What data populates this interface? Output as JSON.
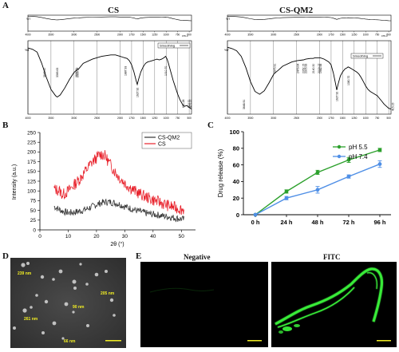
{
  "panels": {
    "A": {
      "letter": "A"
    },
    "B": {
      "letter": "B"
    },
    "C": {
      "letter": "C"
    },
    "D": {
      "letter": "D"
    },
    "E": {
      "letter": "E"
    }
  },
  "colors": {
    "ph55": "#2ca02c",
    "ph74": "#4f8fe6",
    "cs_qm2_xrd": "#333333",
    "cs_xrd": "#e8202a",
    "fitc_green": "#3dff3d",
    "scale_bar": "#f2ee24"
  },
  "chart_data": [
    {
      "id": "ftir_cs",
      "type": "line",
      "title": "CS",
      "xunit": "cm-1",
      "xlim": [
        4000,
        450
      ],
      "xticks": [
        "4000",
        "3500",
        "3000",
        "2500",
        "2000",
        "1750",
        "1500",
        "1250",
        "1000",
        "750",
        "500"
      ],
      "ylabel": "%T",
      "legend": "Smoothing",
      "peak_labels": [
        "3648.20",
        "3365.63",
        "2955.41",
        "2929.97",
        "1887.93",
        "1627.92",
        "1010.70",
        "631.28",
        "513.71",
        "473.22"
      ],
      "series": [
        {
          "x": [
            4000,
            3900,
            3800,
            3700,
            3600,
            3500,
            3400,
            3365,
            3300,
            3200,
            3100,
            3000,
            2950,
            2900,
            2800,
            2600,
            2400,
            2200,
            2100,
            2000,
            1950,
            1900,
            1850,
            1800,
            1750,
            1700,
            1650,
            1628,
            1600,
            1550,
            1500,
            1450,
            1400,
            1350,
            1300,
            1250,
            1200,
            1150,
            1100,
            1050,
            1011,
            980,
            950,
            900,
            850,
            800,
            750,
            700,
            650,
            631,
            600,
            550,
            514,
            473,
            450
          ],
          "y": [
            92,
            90,
            86,
            70,
            50,
            33,
            24,
            22,
            25,
            35,
            47,
            57,
            60,
            62,
            70,
            76,
            80,
            82,
            82,
            80,
            79,
            78,
            77,
            74,
            68,
            58,
            45,
            40,
            47,
            58,
            65,
            70,
            72,
            73,
            74,
            75,
            76,
            75,
            76,
            78,
            80,
            76,
            70,
            58,
            46,
            36,
            26,
            18,
            12,
            10,
            9,
            10,
            8,
            6,
            5
          ]
        }
      ]
    },
    {
      "id": "ftir_csqm2",
      "type": "line",
      "title": "CS-QM2",
      "xunit": "cm-1",
      "xlim": [
        4000,
        450
      ],
      "xticks": [
        "4000",
        "3500",
        "3000",
        "2500",
        "2000",
        "1750",
        "1500",
        "1250",
        "1000",
        "750",
        "500"
      ],
      "ylabel": "%T",
      "legend": "Smoothing",
      "peak_labels": [
        "3648.91",
        "2975.91",
        "2479.64",
        "2352.15",
        "2305.93",
        "2140.30",
        "2019.17",
        "1982.58",
        "1627.92",
        "1380.72",
        "415.15"
      ],
      "series": [
        {
          "x": [
            4000,
            3900,
            3800,
            3700,
            3600,
            3500,
            3400,
            3300,
            3200,
            3100,
            3000,
            2976,
            2900,
            2800,
            2600,
            2480,
            2350,
            2300,
            2200,
            2140,
            2100,
            2019,
            1983,
            1900,
            1850,
            1800,
            1750,
            1700,
            1650,
            1628,
            1600,
            1550,
            1500,
            1450,
            1400,
            1381,
            1350,
            1300,
            1250,
            1200,
            1150,
            1100,
            1050,
            1000,
            950,
            900,
            850,
            800,
            750,
            700,
            650,
            600,
            550,
            500,
            450
          ],
          "y": [
            93,
            91,
            88,
            80,
            64,
            44,
            30,
            26,
            31,
            42,
            54,
            56,
            60,
            66,
            72,
            74,
            75,
            76,
            77,
            77,
            78,
            78,
            78,
            76,
            74,
            72,
            68,
            56,
            40,
            32,
            40,
            52,
            58,
            62,
            64,
            65,
            64,
            62,
            60,
            58,
            55,
            50,
            44,
            38,
            33,
            30,
            28,
            26,
            24,
            20,
            16,
            12,
            9,
            6,
            5
          ]
        }
      ]
    },
    {
      "id": "xrd",
      "type": "line",
      "xlabel": "2θ (°)",
      "ylabel": "Intensity (a.u.)",
      "xlim": [
        0,
        55
      ],
      "ylim": [
        0,
        250
      ],
      "xticks": [
        0,
        10,
        20,
        30,
        40,
        50
      ],
      "yticks": [
        0,
        25,
        50,
        75,
        100,
        125,
        150,
        175,
        200,
        225,
        250
      ],
      "legend_position": "top-right",
      "series": [
        {
          "name": "CS-QM2",
          "x": [
            5,
            8,
            10,
            12,
            14,
            16,
            18,
            20,
            22,
            24,
            26,
            28,
            30,
            32,
            34,
            36,
            38,
            40,
            42,
            44,
            46,
            48,
            50,
            51
          ],
          "y": [
            60,
            48,
            44,
            45,
            48,
            52,
            58,
            65,
            70,
            72,
            70,
            66,
            60,
            55,
            50,
            46,
            42,
            40,
            38,
            35,
            33,
            30,
            28,
            27
          ]
        },
        {
          "name": "CS",
          "x": [
            5,
            7,
            8,
            10,
            12,
            14,
            16,
            18,
            20,
            21,
            22,
            23,
            24,
            26,
            28,
            30,
            32,
            34,
            36,
            38,
            40,
            42,
            44,
            46,
            48,
            50,
            51
          ],
          "y": [
            105,
            100,
            90,
            100,
            115,
            130,
            150,
            170,
            185,
            192,
            195,
            190,
            178,
            155,
            135,
            120,
            108,
            98,
            90,
            83,
            77,
            72,
            66,
            61,
            57,
            53,
            52
          ]
        }
      ]
    },
    {
      "id": "drug_release",
      "type": "line",
      "xlabel": "",
      "ylabel": "Drug release (%)",
      "categories": [
        "0 h",
        "24 h",
        "48 h",
        "72 h",
        "96 h"
      ],
      "ylim": [
        0,
        100
      ],
      "yticks": [
        0,
        20,
        40,
        60,
        80,
        100
      ],
      "legend_position": "top-right",
      "series": [
        {
          "name": "pH 5.5",
          "values": [
            0,
            28,
            51,
            66,
            78
          ],
          "errors": [
            0,
            2,
            2.5,
            3,
            2
          ]
        },
        {
          "name": "pH 7.4",
          "values": [
            0,
            20,
            30,
            46,
            61
          ],
          "errors": [
            0,
            2,
            4,
            2,
            4
          ]
        }
      ]
    }
  ],
  "microscopy_d": {
    "particle_labels": [
      "239 nm",
      "205 nm",
      "90 nm",
      "261 nm",
      "66 nm"
    ]
  },
  "microscopy_e": {
    "negative_title": "Negative",
    "fitc_title": "FITC"
  }
}
